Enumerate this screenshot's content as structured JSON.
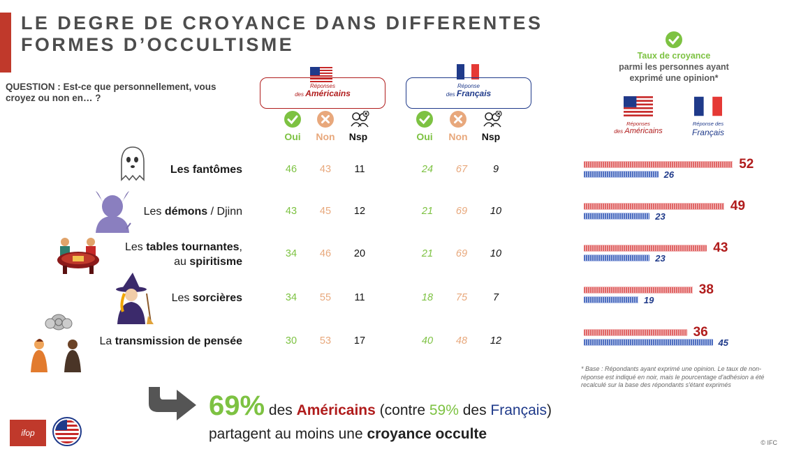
{
  "title": "LE DEGRE DE CROYANCE DANS DIFFERENTES FORMES D’OCCULTISME",
  "question": "QUESTION : Est-ce que personnellement, vous croyez ou non en… ?",
  "us_box": {
    "small": "Réponses",
    "prefix": "des ",
    "big": "Américains"
  },
  "fr_box": {
    "small": "Réponse",
    "prefix": "des ",
    "big": "Français"
  },
  "columns": {
    "oui": "Oui",
    "non": "Non",
    "nsp": "Nsp"
  },
  "colors": {
    "oui": "#7dc242",
    "non": "#e8a87c",
    "us": "#b01c1c",
    "fr": "#1f3a8a",
    "accent": "#c0392b"
  },
  "rows": [
    {
      "label_pre": "",
      "label_bold": "Les fantômes",
      "label_post": "",
      "label_line2": "",
      "us": [
        "46",
        "43",
        "11"
      ],
      "fr": [
        "24",
        "67",
        "9"
      ]
    },
    {
      "label_pre": "Les ",
      "label_bold": "démons",
      "label_post": " / Djinn",
      "label_line2": "",
      "us": [
        "43",
        "45",
        "12"
      ],
      "fr": [
        "21",
        "69",
        "10"
      ]
    },
    {
      "label_pre": "Les ",
      "label_bold": "tables tournantes",
      "label_post": ",",
      "label_line2": "spiritisme",
      "us": [
        "34",
        "46",
        "20"
      ],
      "fr": [
        "21",
        "69",
        "10"
      ]
    },
    {
      "label_pre": "Les ",
      "label_bold": "sorcières",
      "label_post": "",
      "label_line2": "",
      "us": [
        "34",
        "55",
        "11"
      ],
      "fr": [
        "18",
        "75",
        "7"
      ]
    },
    {
      "label_pre": "La ",
      "label_bold": "transmission de pensée",
      "label_post": "",
      "label_line2": "",
      "us": [
        "30",
        "53",
        "17"
      ],
      "fr": [
        "40",
        "48",
        "12"
      ]
    }
  ],
  "rate_title": {
    "line1": "Taux de croyance",
    "line2": "parmi les personnes ayant",
    "line3": "exprimé une opinion*"
  },
  "legend": {
    "us": {
      "small": "Réponses",
      "prefix": "des ",
      "big": "Américains"
    },
    "fr": {
      "small": "Réponse des",
      "big": "Français"
    }
  },
  "chart_data": {
    "type": "bar",
    "orientation": "horizontal",
    "categories": [
      "Les fantômes",
      "Les démons / Djinn",
      "Les tables tournantes, au spiritisme",
      "Les sorcières",
      "La transmission de pensée"
    ],
    "series": [
      {
        "name": "Réponses des Américains",
        "values": [
          52,
          49,
          43,
          38,
          36
        ]
      },
      {
        "name": "Réponse des Français",
        "values": [
          26,
          23,
          23,
          19,
          45
        ]
      }
    ],
    "title": "Taux de croyance parmi les personnes ayant exprimé une opinion*",
    "xlim": [
      0,
      60
    ]
  },
  "footnote": "* Base : Répondants ayant exprimé une opinion. Le taux de non-réponse est indiqué en noir, mais le pourcentage d'adhésion a été recalculé sur la base des répondants s'étant exprimés",
  "conclusion": {
    "pct": "69%",
    "t1": " des ",
    "americains": "Américains",
    "t2": " (contre ",
    "fr_pct": "59%",
    "t3": " des ",
    "francais": "Français",
    "t4": ")",
    "line2_pre": "partagent au moins une ",
    "line2_bold": "croyance occulte"
  },
  "ifop_logo": "ifop",
  "ifc": "© IFC"
}
